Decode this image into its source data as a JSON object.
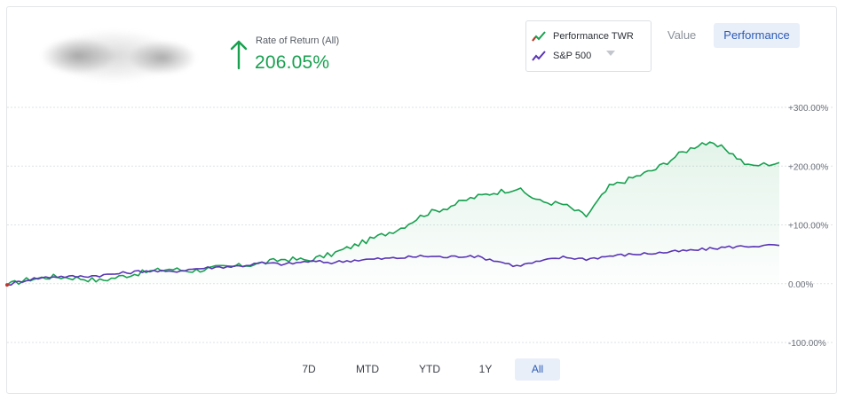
{
  "header": {
    "rate_label": "Rate of Return (All)",
    "rate_value": "206.05%",
    "accent_color": "#18a04f"
  },
  "legend": {
    "items": [
      {
        "label": "Performance TWR",
        "color": "#18a04f",
        "icon": "line-chart-icon"
      },
      {
        "label": "S&P 500",
        "color": "#5a35b5",
        "icon": "line-chart-icon"
      }
    ]
  },
  "view_toggle": {
    "options": [
      "Value",
      "Performance"
    ],
    "selected": "Performance"
  },
  "range_buttons": {
    "options": [
      "7D",
      "MTD",
      "YTD",
      "1Y",
      "All"
    ],
    "selected": "All"
  },
  "chart_data": {
    "type": "line",
    "title": "",
    "xlabel": "",
    "ylabel": "",
    "ylim": [
      -100,
      300
    ],
    "yticks": [
      300,
      200,
      100,
      0,
      -100
    ],
    "ytick_labels": [
      "+300.00%",
      "+200.00%",
      "+100.00%",
      "0.00%",
      "-100.00%"
    ],
    "grid": true,
    "fill_under_first_series": true,
    "x": [
      0,
      3,
      6,
      9,
      12,
      15,
      18,
      21,
      24,
      27,
      30,
      33,
      36,
      39,
      42,
      45,
      48,
      51,
      54,
      57,
      60,
      63,
      66,
      69,
      72,
      75,
      78,
      81,
      84,
      87,
      90,
      93,
      96,
      100
    ],
    "series": [
      {
        "name": "Performance TWR",
        "color": "#18a04f",
        "values": [
          -2,
          8,
          12,
          10,
          5,
          13,
          20,
          25,
          22,
          27,
          30,
          35,
          42,
          40,
          50,
          65,
          80,
          95,
          118,
          130,
          145,
          155,
          162,
          140,
          135,
          115,
          165,
          180,
          195,
          220,
          240,
          230,
          200,
          206
        ]
      },
      {
        "name": "S&P 500",
        "color": "#5a35b5",
        "values": [
          -2,
          8,
          12,
          12,
          14,
          18,
          22,
          20,
          25,
          28,
          30,
          35,
          33,
          38,
          36,
          40,
          42,
          44,
          47,
          45,
          48,
          40,
          30,
          38,
          45,
          42,
          47,
          50,
          52,
          55,
          58,
          62,
          64,
          65
        ]
      }
    ]
  }
}
